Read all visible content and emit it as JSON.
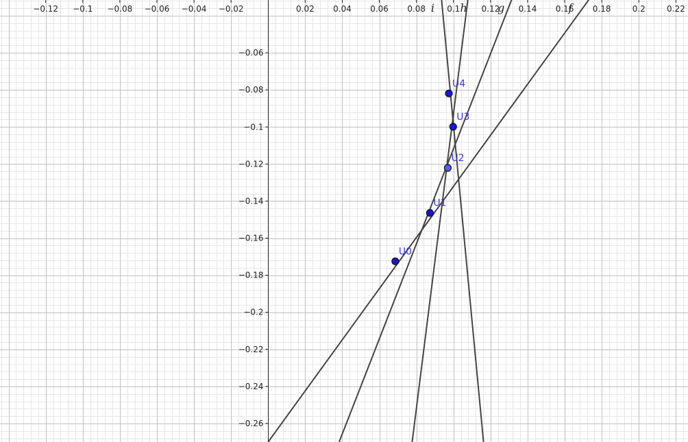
{
  "graphics_view": {
    "x_range": [
      -0.14466,
      0.22652
    ],
    "y_range": [
      -0.27,
      -0.0315
    ],
    "grid_major": 0.02,
    "grid_minor": 0.004,
    "grid_shown": true,
    "x_tick_labels": [
      "−0.12",
      "−0.1",
      "−0.08",
      "−0.06",
      "−0.04",
      "−0.02",
      "0.02",
      "0.04",
      "0.06",
      "0.08",
      "0.1",
      "0.12",
      "0.14",
      "0.16",
      "0.18",
      "0.2",
      "0.22"
    ],
    "x_tick_values": [
      -0.12,
      -0.1,
      -0.08,
      -0.06,
      -0.04,
      -0.02,
      0.02,
      0.04,
      0.06,
      0.08,
      0.1,
      0.12,
      0.14,
      0.16,
      0.18,
      0.2,
      0.22
    ],
    "y_tick_labels": [
      "−0.06",
      "−0.08",
      "−0.1",
      "−0.12",
      "−0.14",
      "−0.16",
      "−0.18",
      "−0.2",
      "−0.22",
      "−0.24",
      "−0.26"
    ],
    "y_tick_values": [
      -0.06,
      -0.08,
      -0.1,
      -0.12,
      -0.14,
      -0.16,
      -0.18,
      -0.2,
      -0.22,
      -0.24,
      -0.26
    ]
  },
  "colors": {
    "line": "#444444",
    "point_fill": "#1a14d6",
    "point_fill_selected": "#5b5bdf",
    "point_label": "#3b3bd9",
    "grid_major": "#c0c0c0",
    "grid_minor": "#e6e6e6",
    "axis": "#222222"
  },
  "points": [
    {
      "name": "U0",
      "x": 0.0686,
      "y": -0.1725
    },
    {
      "name": "U1",
      "x": 0.0873,
      "y": -0.1464
    },
    {
      "name": "U2",
      "x": 0.0969,
      "y": -0.1221
    },
    {
      "name": "U3",
      "x": 0.0998,
      "y": -0.0999
    },
    {
      "name": "U4",
      "x": 0.0975,
      "y": -0.0819
    }
  ],
  "lines": [
    {
      "name": "f",
      "through": [
        [
          0.0,
          -0.27
        ],
        [
          0.16,
          -0.0493
        ]
      ],
      "label_at_x": 0.163
    },
    {
      "name": "g",
      "through": [
        [
          0.0383,
          -0.27
        ],
        [
          0.1265,
          -0.0438
        ]
      ],
      "label_at_x": 0.1257
    },
    {
      "name": "h",
      "through": [
        [
          0.0777,
          -0.27
        ],
        [
          0.1077,
          -0.0317
        ]
      ],
      "label_at_x": 0.1055
    },
    {
      "name": "i",
      "through": [
        [
          0.1162,
          -0.27
        ],
        [
          0.0936,
          -0.0317
        ]
      ],
      "label_at_x": 0.0888
    }
  ]
}
